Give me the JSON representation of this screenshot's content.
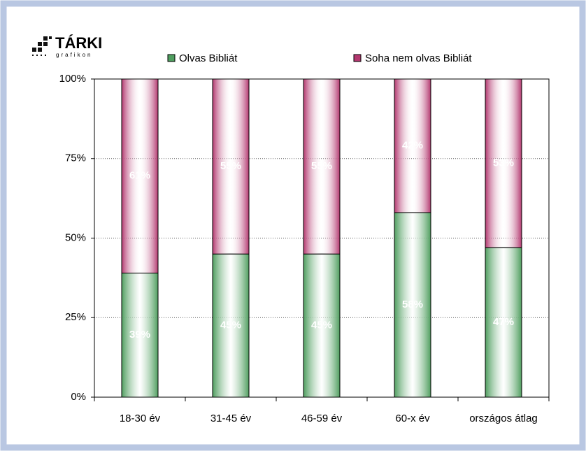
{
  "logo": {
    "title": "TÁRKI",
    "subtitle": "grafikon"
  },
  "chart_data": {
    "type": "stacked_bar",
    "categories": [
      "18-30 év",
      "31-45 év",
      "46-59 év",
      "60-x év",
      "országos átlag"
    ],
    "series": [
      {
        "name": "Olvas Bibliát",
        "color": "#4f9e5f",
        "values": [
          39,
          45,
          45,
          58,
          47
        ],
        "value_labels": [
          "39%",
          "45%",
          "45%",
          "58%",
          "47%"
        ]
      },
      {
        "name": "Soha nem olvas Bibliát",
        "color": "#b3386f",
        "values": [
          61,
          55,
          55,
          42,
          53
        ],
        "value_labels": [
          "61%",
          "55%",
          "55%",
          "42%",
          "53%"
        ]
      }
    ],
    "ylim": [
      0,
      100
    ],
    "yticks": [
      {
        "value": 0,
        "label": "0%"
      },
      {
        "value": 25,
        "label": "25%"
      },
      {
        "value": 50,
        "label": "50%"
      },
      {
        "value": 75,
        "label": "75%"
      },
      {
        "value": 100,
        "label": "100%"
      }
    ],
    "grid": true,
    "legend": "top"
  }
}
